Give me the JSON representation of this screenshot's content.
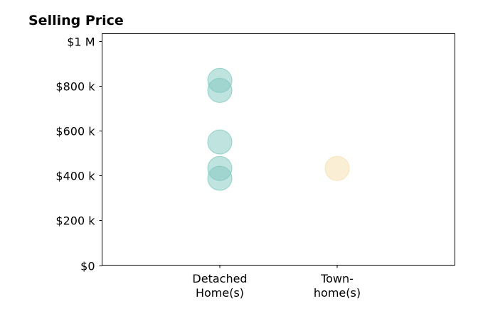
{
  "chart_data": {
    "type": "scatter",
    "title": "Selling Price",
    "xlabel": "",
    "ylabel": "",
    "categories": [
      [
        "Detached",
        "Home(s)"
      ],
      [
        "Town-",
        "home(s)"
      ]
    ],
    "ylim": [
      0,
      1000000
    ],
    "yticks": [
      {
        "value": 0,
        "label": "$0"
      },
      {
        "value": 200000,
        "label": "$200 k"
      },
      {
        "value": 400000,
        "label": "$400 k"
      },
      {
        "value": 600000,
        "label": "$600 k"
      },
      {
        "value": 800000,
        "label": "$800 k"
      },
      {
        "value": 1000000,
        "label": "$1 M"
      }
    ],
    "grid": false,
    "points": [
      {
        "category": 0,
        "value": 825000
      },
      {
        "category": 0,
        "value": 780000
      },
      {
        "category": 0,
        "value": 550000
      },
      {
        "category": 0,
        "value": 432000
      },
      {
        "category": 0,
        "value": 388000
      },
      {
        "category": 1,
        "value": 432000
      }
    ],
    "colors": [
      "#80c8be",
      "#f5dfab"
    ],
    "point_alpha": 0.5
  }
}
